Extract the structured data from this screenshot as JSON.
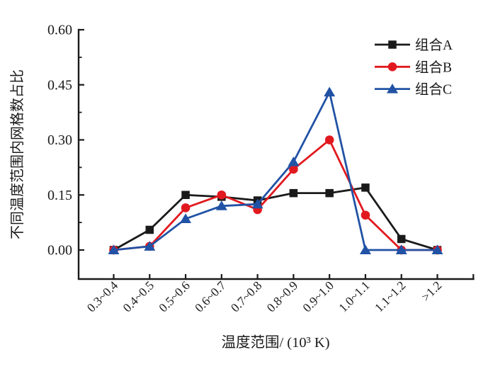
{
  "figure": {
    "background": "#ffffff",
    "axis_color": "#1a1a1a"
  },
  "chart_data": {
    "type": "line",
    "title": "",
    "xlabel": "温度范围/ (10³ K)",
    "ylabel": "不同温度范围内网格数占比",
    "categories": [
      "0.3~0.4",
      "0.4~0.5",
      "0.5~0.6",
      "0.6~0.7",
      "0.7~0.8",
      "0.8~0.9",
      "0.9~1.0",
      "1.0~1.1",
      "1.1~1.2",
      ">1.2"
    ],
    "series": [
      {
        "name": "组合A",
        "color": "#1a1a1a",
        "marker": "square",
        "values": [
          0.0,
          0.055,
          0.15,
          0.145,
          0.135,
          0.155,
          0.155,
          0.17,
          0.03,
          0.0
        ]
      },
      {
        "name": "组合B",
        "color": "#e1191f",
        "marker": "circle",
        "values": [
          0.0,
          0.01,
          0.115,
          0.15,
          0.11,
          0.22,
          0.3,
          0.095,
          0.0,
          0.0
        ]
      },
      {
        "name": "组合C",
        "color": "#2152a5",
        "marker": "triangle",
        "values": [
          0.0,
          0.01,
          0.085,
          0.12,
          0.125,
          0.24,
          0.43,
          0.0,
          0.0,
          0.0
        ]
      }
    ],
    "ylim": [
      0,
      0.6
    ],
    "yticks": [
      0.0,
      0.15,
      0.3,
      0.45,
      0.6
    ],
    "ytick_labels": [
      "0.00",
      "0.15",
      "0.30",
      "0.45",
      "0.60"
    ],
    "y_minor_ticks": [
      0.075,
      0.225,
      0.375,
      0.525
    ],
    "legend_position": "top-right",
    "grid": false
  }
}
